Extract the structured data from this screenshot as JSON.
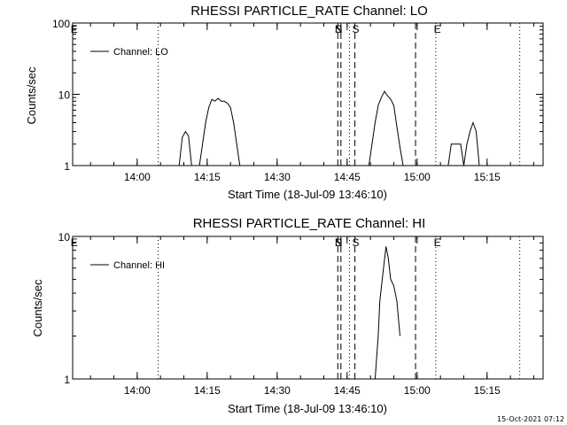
{
  "footer": {
    "timestamp": "15-Oct-2021 07:12"
  },
  "chart_data": [
    {
      "type": "line",
      "title": "RHESSI PARTICLE_RATE Channel: LO",
      "xlabel": "Start Time (18-Jul-09 13:46:10)",
      "ylabel": "Counts/sec",
      "y_scale": "log",
      "ylim": [
        1,
        100
      ],
      "y_ticks": [
        {
          "v": 1,
          "label": "1"
        },
        {
          "v": 10,
          "label": "10"
        },
        {
          "v": 100,
          "label": "100"
        }
      ],
      "xlim": [
        "13:46:10",
        "15:27:00"
      ],
      "x_ticks": [
        "14:00",
        "14:15",
        "14:30",
        "14:45",
        "15:00",
        "15:15"
      ],
      "legend": {
        "position": "top-left",
        "entries": [
          "Channel: LO"
        ]
      },
      "dotted_lines": [
        "14:04:30",
        "14:45:30",
        "15:04:00",
        "15:22:00"
      ],
      "dashed_lines": [
        "14:43:00",
        "14:43:40",
        "14:46:40",
        "14:59:40"
      ],
      "markers": [
        {
          "label": "E",
          "x": "13:46:30"
        },
        {
          "label": "S",
          "x": "14:43:10"
        },
        {
          "label": "N",
          "x": "14:43:10"
        },
        {
          "label": "S",
          "x": "14:46:50"
        },
        {
          "label": "E",
          "x": "15:04:20"
        }
      ],
      "series": [
        {
          "name": "Channel: LO",
          "points": [
            [
              "14:09:00",
              1
            ],
            [
              "14:09:40",
              2.5
            ],
            [
              "14:10:20",
              3
            ],
            [
              "14:11:00",
              2.6
            ],
            [
              "14:11:40",
              1
            ],
            [
              "14:13:20",
              1
            ],
            [
              "14:14:00",
              2
            ],
            [
              "14:14:40",
              4
            ],
            [
              "14:15:20",
              6.5
            ],
            [
              "14:16:00",
              8.5
            ],
            [
              "14:16:40",
              8
            ],
            [
              "14:17:20",
              8.8
            ],
            [
              "14:18:00",
              8
            ],
            [
              "14:18:40",
              8
            ],
            [
              "14:19:20",
              7.5
            ],
            [
              "14:20:00",
              6.5
            ],
            [
              "14:20:40",
              4
            ],
            [
              "14:21:20",
              2
            ],
            [
              "14:22:00",
              1
            ],
            [
              "14:49:40",
              1
            ],
            [
              "14:50:20",
              2
            ],
            [
              "14:51:00",
              4
            ],
            [
              "14:51:40",
              7
            ],
            [
              "14:52:20",
              9
            ],
            [
              "14:53:00",
              11
            ],
            [
              "14:53:40",
              9.5
            ],
            [
              "14:54:20",
              8.5
            ],
            [
              "14:55:00",
              7
            ],
            [
              "14:55:40",
              3.5
            ],
            [
              "14:56:20",
              1.8
            ],
            [
              "14:57:00",
              1
            ],
            [
              "15:06:40",
              1
            ],
            [
              "15:07:20",
              2
            ],
            [
              "15:09:20",
              2
            ],
            [
              "15:10:00",
              1
            ],
            [
              "15:10:40",
              2
            ],
            [
              "15:11:20",
              3
            ],
            [
              "15:12:00",
              4
            ],
            [
              "15:12:40",
              3
            ],
            [
              "15:13:20",
              1
            ]
          ]
        }
      ]
    },
    {
      "type": "line",
      "title": "RHESSI PARTICLE_RATE Channel: HI",
      "xlabel": "Start Time (18-Jul-09 13:46:10)",
      "ylabel": "Counts/sec",
      "y_scale": "log",
      "ylim": [
        1,
        10
      ],
      "y_ticks": [
        {
          "v": 1,
          "label": "1"
        },
        {
          "v": 10,
          "label": "10"
        }
      ],
      "xlim": [
        "13:46:10",
        "15:27:00"
      ],
      "x_ticks": [
        "14:00",
        "14:15",
        "14:30",
        "14:45",
        "15:00",
        "15:15"
      ],
      "legend": {
        "position": "top-left",
        "entries": [
          "Channel: HI"
        ]
      },
      "dotted_lines": [
        "14:04:30",
        "14:45:30",
        "15:04:00",
        "15:22:00"
      ],
      "dashed_lines": [
        "14:43:00",
        "14:43:40",
        "14:46:40",
        "14:59:40"
      ],
      "markers": [
        {
          "label": "E",
          "x": "13:46:30"
        },
        {
          "label": "S",
          "x": "14:43:10"
        },
        {
          "label": "N",
          "x": "14:43:10"
        },
        {
          "label": "S",
          "x": "14:46:50"
        },
        {
          "label": "E",
          "x": "15:04:20"
        }
      ],
      "series": [
        {
          "name": "Channel: HI",
          "points": [
            [
              "14:51:00",
              1
            ],
            [
              "14:51:40",
              2
            ],
            [
              "14:52:00",
              3.5
            ],
            [
              "14:52:40",
              5.5
            ],
            [
              "14:53:20",
              8.5
            ],
            [
              "14:53:50",
              7
            ],
            [
              "14:54:20",
              5
            ],
            [
              "14:55:00",
              4.5
            ],
            [
              "14:55:40",
              3.5
            ],
            [
              "14:56:20",
              2
            ]
          ]
        }
      ]
    }
  ]
}
